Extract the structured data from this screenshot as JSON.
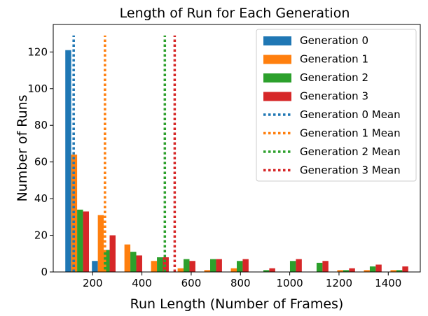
{
  "chart_data": {
    "type": "bar",
    "title": "Length of Run for Each Generation",
    "xlabel": "Run Length (Number of Frames)",
    "ylabel": "Number of Runs",
    "xlim": [
      40,
      1530
    ],
    "ylim": [
      0,
      135
    ],
    "xticks": [
      200,
      400,
      600,
      800,
      1000,
      1200,
      1400
    ],
    "yticks": [
      0,
      20,
      40,
      60,
      80,
      100,
      120
    ],
    "bin_centers": [
      137,
      245,
      353,
      461,
      569,
      677,
      785,
      893,
      1001,
      1109,
      1217,
      1325,
      1433
    ],
    "bar_group_width": 96,
    "legend_position": "top-right",
    "grid": false,
    "series": [
      {
        "name": "Generation 0",
        "color": "#1f77b4",
        "values": [
          121,
          6,
          0,
          0,
          0,
          0,
          0,
          0,
          0,
          0,
          0,
          0,
          0
        ]
      },
      {
        "name": "Generation 1",
        "color": "#ff7f0e",
        "values": [
          64,
          31,
          15,
          6,
          2,
          1,
          2,
          0,
          0,
          0,
          1,
          1,
          1
        ]
      },
      {
        "name": "Generation 2",
        "color": "#2ca02c",
        "values": [
          34,
          12,
          11,
          8,
          7,
          7,
          6,
          1,
          6,
          5,
          1,
          3,
          1
        ]
      },
      {
        "name": "Generation 3",
        "color": "#d62728",
        "values": [
          33,
          20,
          9,
          8,
          6,
          7,
          7,
          2,
          7,
          6,
          2,
          4,
          3
        ]
      }
    ],
    "means": [
      {
        "name": "Generation 0 Mean",
        "color": "#1f77b4",
        "x": 123,
        "ymax": 129
      },
      {
        "name": "Generation 1 Mean",
        "color": "#ff7f0e",
        "x": 250,
        "ymax": 129
      },
      {
        "name": "Generation 2 Mean",
        "color": "#2ca02c",
        "x": 493,
        "ymax": 129
      },
      {
        "name": "Generation 3 Mean",
        "color": "#d62728",
        "x": 533,
        "ymax": 129
      }
    ]
  }
}
